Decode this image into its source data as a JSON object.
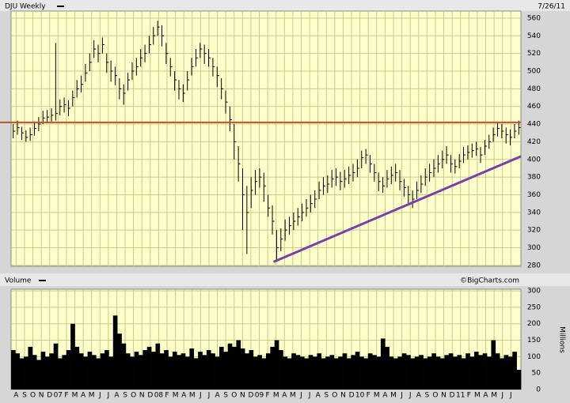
{
  "chart_data": {
    "type": "ohlc",
    "title": "DJU Weekly",
    "date": "7/26/11",
    "color": "#000000",
    "background": "#ffffcc",
    "grid": true,
    "high": [
      440,
      444,
      437,
      433,
      436,
      443,
      448,
      455,
      456,
      458,
      532,
      468,
      470,
      467,
      478,
      490,
      495,
      508,
      520,
      535,
      530,
      538,
      520,
      512,
      505,
      492,
      485,
      498,
      510,
      515,
      525,
      530,
      540,
      550,
      557,
      552,
      532,
      515,
      500,
      490,
      485,
      500,
      515,
      525,
      532,
      530,
      525,
      515,
      505,
      492,
      478,
      460,
      440,
      415,
      390,
      370,
      380,
      388,
      390,
      385,
      360,
      348,
      320,
      322,
      332,
      335,
      340,
      345,
      350,
      355,
      360,
      365,
      375,
      380,
      382,
      388,
      390,
      386,
      388,
      392,
      395,
      400,
      410,
      412,
      405,
      395,
      385,
      380,
      388,
      392,
      395,
      388,
      378,
      370,
      365,
      375,
      382,
      390,
      395,
      400,
      405,
      410,
      415,
      405,
      400,
      406,
      414,
      416,
      418,
      420,
      414,
      422,
      428,
      436,
      442,
      440,
      436,
      434,
      440,
      444
    ],
    "low": [
      424,
      428,
      422,
      420,
      421,
      427,
      432,
      440,
      441,
      443,
      444,
      450,
      453,
      449,
      460,
      470,
      476,
      488,
      500,
      515,
      510,
      520,
      498,
      488,
      484,
      468,
      462,
      478,
      490,
      495,
      505,
      510,
      520,
      530,
      540,
      528,
      508,
      494,
      478,
      468,
      465,
      478,
      495,
      505,
      515,
      508,
      505,
      494,
      482,
      468,
      452,
      432,
      400,
      375,
      320,
      293,
      345,
      360,
      368,
      352,
      335,
      315,
      285,
      296,
      308,
      315,
      320,
      325,
      330,
      335,
      340,
      345,
      355,
      360,
      362,
      368,
      370,
      365,
      368,
      372,
      375,
      380,
      390,
      395,
      385,
      375,
      364,
      362,
      368,
      372,
      375,
      365,
      358,
      348,
      345,
      355,
      362,
      370,
      375,
      380,
      385,
      390,
      395,
      385,
      384,
      390,
      396,
      400,
      402,
      404,
      396,
      405,
      412,
      420,
      426,
      424,
      418,
      416,
      424,
      428
    ],
    "close": [
      432,
      436,
      430,
      425,
      428,
      435,
      440,
      447,
      448,
      450,
      452,
      460,
      462,
      458,
      470,
      480,
      485,
      498,
      510,
      525,
      520,
      530,
      510,
      500,
      495,
      480,
      475,
      490,
      500,
      505,
      515,
      520,
      530,
      540,
      550,
      540,
      520,
      505,
      490,
      480,
      475,
      490,
      505,
      515,
      525,
      520,
      515,
      505,
      495,
      480,
      465,
      445,
      420,
      395,
      360,
      340,
      365,
      375,
      380,
      370,
      345,
      330,
      300,
      310,
      320,
      325,
      330,
      335,
      340,
      345,
      350,
      355,
      365,
      370,
      372,
      378,
      380,
      375,
      378,
      382,
      385,
      390,
      402,
      405,
      395,
      385,
      375,
      370,
      378,
      382,
      385,
      375,
      368,
      360,
      355,
      365,
      372,
      380,
      385,
      390,
      395,
      400,
      405,
      395,
      392,
      398,
      405,
      408,
      410,
      412,
      405,
      415,
      420,
      428,
      435,
      432,
      428,
      425,
      432,
      436
    ],
    "ylim": [
      279,
      568
    ],
    "yticks": [
      280,
      300,
      320,
      340,
      360,
      380,
      400,
      420,
      440,
      460,
      480,
      500,
      520,
      540,
      560
    ],
    "xlim": [
      -0.6,
      60.2
    ],
    "xticks": [
      {
        "value": 0,
        "label": "A"
      },
      {
        "value": 1,
        "label": "S"
      },
      {
        "value": 2,
        "label": "O"
      },
      {
        "value": 3,
        "label": "N"
      },
      {
        "value": 4,
        "label": "D"
      },
      {
        "value": 5,
        "label": "07"
      },
      {
        "value": 6,
        "label": "F"
      },
      {
        "value": 7,
        "label": "M"
      },
      {
        "value": 8,
        "label": "A"
      },
      {
        "value": 9,
        "label": "M"
      },
      {
        "value": 10,
        "label": "J"
      },
      {
        "value": 11,
        "label": "J"
      },
      {
        "value": 12,
        "label": "A"
      },
      {
        "value": 13,
        "label": "S"
      },
      {
        "value": 14,
        "label": "O"
      },
      {
        "value": 15,
        "label": "N"
      },
      {
        "value": 16,
        "label": "D"
      },
      {
        "value": 17,
        "label": "08"
      },
      {
        "value": 18,
        "label": "F"
      },
      {
        "value": 19,
        "label": "M"
      },
      {
        "value": 20,
        "label": "A"
      },
      {
        "value": 21,
        "label": "M"
      },
      {
        "value": 22,
        "label": "J"
      },
      {
        "value": 23,
        "label": "J"
      },
      {
        "value": 24,
        "label": "A"
      },
      {
        "value": 25,
        "label": "S"
      },
      {
        "value": 26,
        "label": "O"
      },
      {
        "value": 27,
        "label": "N"
      },
      {
        "value": 28,
        "label": "D"
      },
      {
        "value": 29,
        "label": "09"
      },
      {
        "value": 30,
        "label": "F"
      },
      {
        "value": 31,
        "label": "M"
      },
      {
        "value": 32,
        "label": "A"
      },
      {
        "value": 33,
        "label": "M"
      },
      {
        "value": 34,
        "label": "J"
      },
      {
        "value": 35,
        "label": "J"
      },
      {
        "value": 36,
        "label": "A"
      },
      {
        "value": 37,
        "label": "S"
      },
      {
        "value": 38,
        "label": "O"
      },
      {
        "value": 39,
        "label": "N"
      },
      {
        "value": 40,
        "label": "D"
      },
      {
        "value": 41,
        "label": "10"
      },
      {
        "value": 42,
        "label": "F"
      },
      {
        "value": 43,
        "label": "M"
      },
      {
        "value": 44,
        "label": "A"
      },
      {
        "value": 45,
        "label": "M"
      },
      {
        "value": 46,
        "label": "J"
      },
      {
        "value": 47,
        "label": "J"
      },
      {
        "value": 48,
        "label": "A"
      },
      {
        "value": 49,
        "label": "S"
      },
      {
        "value": 50,
        "label": "O"
      },
      {
        "value": 51,
        "label": "N"
      },
      {
        "value": 52,
        "label": "D"
      },
      {
        "value": 53,
        "label": "11"
      },
      {
        "value": 54,
        "label": "F"
      },
      {
        "value": 55,
        "label": "M"
      },
      {
        "value": 56,
        "label": "A"
      },
      {
        "value": 57,
        "label": "M"
      },
      {
        "value": 58,
        "label": "J"
      },
      {
        "value": 59,
        "label": "J"
      }
    ],
    "hlines": [
      {
        "value": 442,
        "color": "#b4552d"
      }
    ],
    "trendline": {
      "x": [
        30.7,
        60.2
      ],
      "y": [
        284,
        403.5
      ],
      "color": "#7b3fa8"
    },
    "volume": {
      "title": "Volume",
      "credit": "©BigCharts.com",
      "ylabel": "Millions",
      "color": "#000000",
      "values": [
        120,
        110,
        95,
        100,
        130,
        105,
        90,
        115,
        100,
        110,
        140,
        95,
        105,
        120,
        200,
        130,
        110,
        100,
        115,
        105,
        95,
        110,
        120,
        100,
        225,
        170,
        140,
        110,
        100,
        115,
        105,
        120,
        130,
        115,
        140,
        110,
        120,
        100,
        115,
        105,
        110,
        100,
        125,
        95,
        115,
        105,
        120,
        110,
        100,
        130,
        115,
        140,
        130,
        150,
        125,
        110,
        120,
        100,
        105,
        95,
        110,
        130,
        150,
        120,
        100,
        95,
        110,
        105,
        100,
        95,
        105,
        100,
        110,
        95,
        100,
        105,
        95,
        100,
        110,
        95,
        105,
        115,
        100,
        95,
        110,
        105,
        100,
        155,
        130,
        100,
        95,
        100,
        110,
        105,
        95,
        100,
        105,
        95,
        100,
        110,
        100,
        95,
        105,
        110,
        100,
        105,
        95,
        110,
        100,
        115,
        105,
        110,
        100,
        150,
        110,
        95,
        105,
        100,
        115,
        60
      ],
      "ylim": [
        0,
        305
      ],
      "yticks": [
        0,
        50,
        100,
        150,
        200,
        250,
        300
      ]
    }
  }
}
